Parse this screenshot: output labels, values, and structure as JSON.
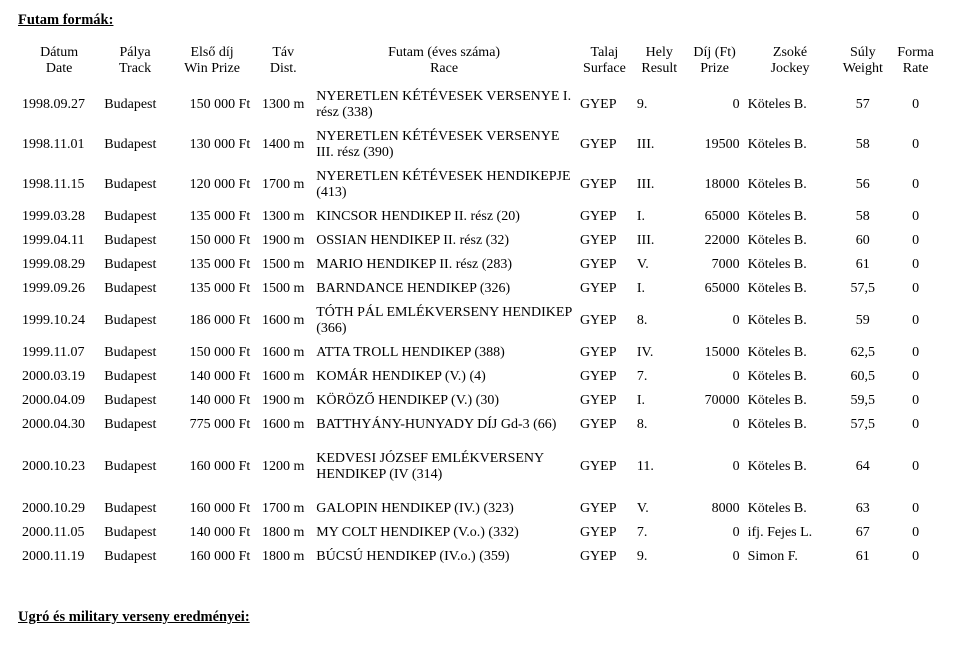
{
  "section_title": "Futam formák:",
  "footer_section_title": "Ugró és military verseny eredményei:",
  "headers": {
    "hu": [
      "Dátum",
      "Pálya",
      "Első díj",
      "Táv",
      "Futam (éves száma)",
      "Talaj",
      "Hely",
      "Díj (Ft)",
      "Zsoké",
      "Súly",
      "Forma"
    ],
    "en": [
      "Date",
      "Track",
      "Win Prize",
      "Dist.",
      "Race",
      "Surface",
      "Result",
      "Prize",
      "Jockey",
      "Weight",
      "Rate"
    ]
  },
  "rows": [
    {
      "date": "1998.09.27",
      "track": "Budapest",
      "win_prize": "150 000 Ft",
      "dist": "1300 m",
      "race": "NYERETLEN KÉTÉVESEK VERSENYE I. rész (338)",
      "surface": "GYEP",
      "result": "9.",
      "prize": "0",
      "jockey": "Köteles B.",
      "weight": "57",
      "rate": "0"
    },
    {
      "date": "1998.11.01",
      "track": "Budapest",
      "win_prize": "130 000 Ft",
      "dist": "1400 m",
      "race": "NYERETLEN KÉTÉVESEK VERSENYE III. rész (390)",
      "surface": "GYEP",
      "result": "III.",
      "prize": "19500",
      "jockey": "Köteles B.",
      "weight": "58",
      "rate": "0"
    },
    {
      "date": "1998.11.15",
      "track": "Budapest",
      "win_prize": "120 000 Ft",
      "dist": "1700 m",
      "race": "NYERETLEN KÉTÉVESEK HENDIKEPJE (413)",
      "surface": "GYEP",
      "result": "III.",
      "prize": "18000",
      "jockey": "Köteles B.",
      "weight": "56",
      "rate": "0"
    },
    {
      "date": "1999.03.28",
      "track": "Budapest",
      "win_prize": "135 000 Ft",
      "dist": "1300 m",
      "race": "KINCSOR HENDIKEP II. rész (20)",
      "surface": "GYEP",
      "result": "I.",
      "prize": "65000",
      "jockey": "Köteles B.",
      "weight": "58",
      "rate": "0"
    },
    {
      "date": "1999.04.11",
      "track": "Budapest",
      "win_prize": "150 000 Ft",
      "dist": "1900 m",
      "race": "OSSIAN HENDIKEP II. rész  (32)",
      "surface": "GYEP",
      "result": "III.",
      "prize": "22000",
      "jockey": "Köteles B.",
      "weight": "60",
      "rate": "0"
    },
    {
      "date": "1999.08.29",
      "track": "Budapest",
      "win_prize": "135 000 Ft",
      "dist": "1500 m",
      "race": "MARIO HENDIKEP II. rész  (283)",
      "surface": "GYEP",
      "result": "V.",
      "prize": "7000",
      "jockey": "Köteles B.",
      "weight": "61",
      "rate": "0"
    },
    {
      "date": "1999.09.26",
      "track": "Budapest",
      "win_prize": "135 000 Ft",
      "dist": "1500 m",
      "race": "BARNDANCE HENDIKEP (326)",
      "surface": "GYEP",
      "result": "I.",
      "prize": "65000",
      "jockey": "Köteles B.",
      "weight": "57,5",
      "rate": "0"
    },
    {
      "date": "1999.10.24",
      "track": "Budapest",
      "win_prize": "186 000 Ft",
      "dist": "1600 m",
      "race": "TÓTH PÁL EMLÉKVERSENY HENDIKEP (366)",
      "surface": "GYEP",
      "result": "8.",
      "prize": "0",
      "jockey": "Köteles B.",
      "weight": "59",
      "rate": "0"
    },
    {
      "date": "1999.11.07",
      "track": "Budapest",
      "win_prize": "150 000 Ft",
      "dist": "1600 m",
      "race": "ATTA TROLL HENDIKEP (388)",
      "surface": "GYEP",
      "result": "IV.",
      "prize": "15000",
      "jockey": "Köteles B.",
      "weight": "62,5",
      "rate": "0"
    },
    {
      "date": "2000.03.19",
      "track": "Budapest",
      "win_prize": "140 000 Ft",
      "dist": "1600 m",
      "race": "KOMÁR HENDIKEP (V.) (4)",
      "surface": "GYEP",
      "result": "7.",
      "prize": "0",
      "jockey": "Köteles B.",
      "weight": "60,5",
      "rate": "0"
    },
    {
      "date": "2000.04.09",
      "track": "Budapest",
      "win_prize": "140 000 Ft",
      "dist": "1900 m",
      "race": "KÖRÖZŐ HENDIKEP (V.) (30)",
      "surface": "GYEP",
      "result": "I.",
      "prize": "70000",
      "jockey": "Köteles B.",
      "weight": "59,5",
      "rate": "0"
    },
    {
      "date": "2000.04.30",
      "track": "Budapest",
      "win_prize": "775 000 Ft",
      "dist": "1600 m",
      "race": "BATTHYÁNY-HUNYADY DÍJ Gd-3 (66)",
      "surface": "GYEP",
      "result": "8.",
      "prize": "0",
      "jockey": "Köteles B.",
      "weight": "57,5",
      "rate": "0"
    },
    {
      "date": "2000.10.23",
      "track": "Budapest",
      "win_prize": "160 000 Ft",
      "dist": "1200 m",
      "race": "KEDVESI JÓZSEF EMLÉKVERSENY HENDIKEP (IV (314)",
      "surface": "GYEP",
      "result": "11.",
      "prize": "0",
      "jockey": "Köteles B.",
      "weight": "64",
      "rate": "0",
      "gap_before": true
    },
    {
      "date": "2000.10.29",
      "track": "Budapest",
      "win_prize": "160 000 Ft",
      "dist": "1700 m",
      "race": "GALOPIN HENDIKEP (IV.) (323)",
      "surface": "GYEP",
      "result": "V.",
      "prize": "8000",
      "jockey": "Köteles B.",
      "weight": "63",
      "rate": "0",
      "gap_before": true
    },
    {
      "date": "2000.11.05",
      "track": "Budapest",
      "win_prize": "140 000 Ft",
      "dist": "1800 m",
      "race": "MY COLT HENDIKEP (V.o.) (332)",
      "surface": "GYEP",
      "result": "7.",
      "prize": "0",
      "jockey": "ifj. Fejes L.",
      "weight": "67",
      "rate": "0"
    },
    {
      "date": "2000.11.19",
      "track": "Budapest",
      "win_prize": "160 000 Ft",
      "dist": "1800 m",
      "race": "BÚCSÚ HENDIKEP (IV.o.) (359)",
      "surface": "GYEP",
      "result": "9.",
      "prize": "0",
      "jockey": "Simon F.",
      "weight": "61",
      "rate": "0"
    }
  ]
}
